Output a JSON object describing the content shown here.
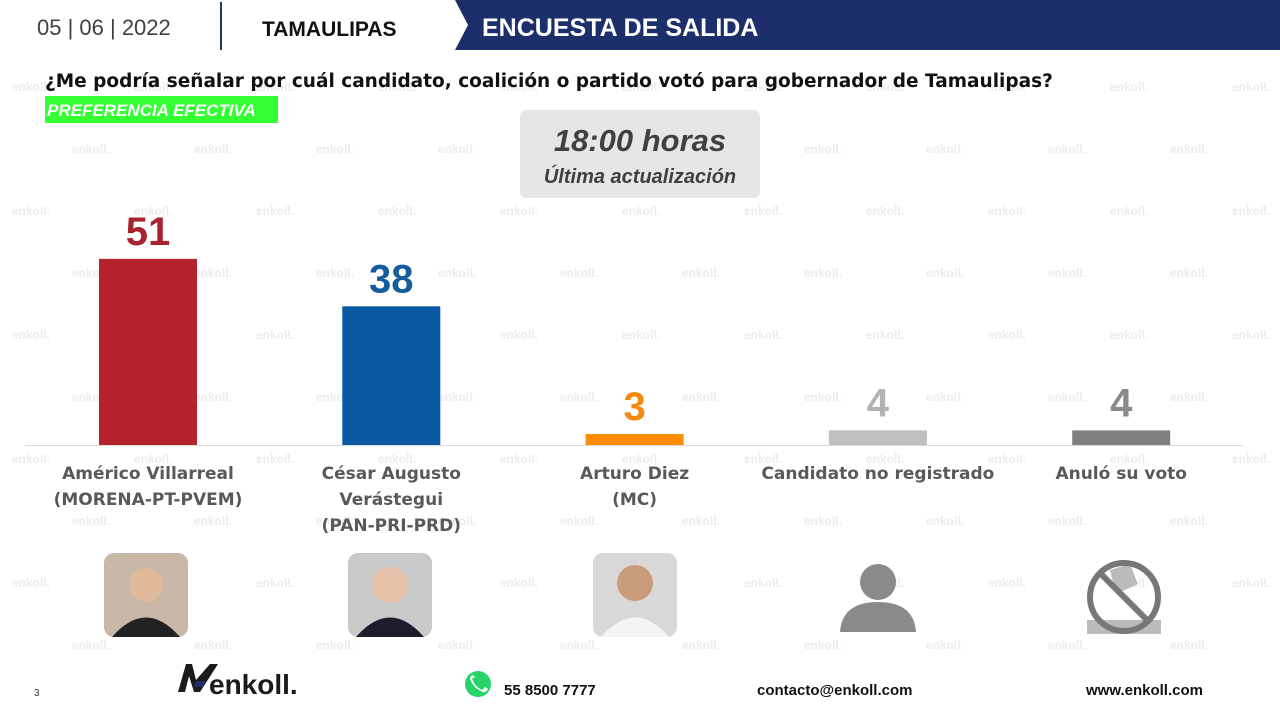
{
  "header": {
    "date": "05 | 06 | 2022",
    "state": "TAMAULIPAS",
    "banner": "ENCUESTA DE SALIDA"
  },
  "question": "¿Me podría señalar por cuál candidato, coalición o partido votó para gobernador de Tamaulipas?",
  "tag": "PREFERENCIA EFECTIVA",
  "update": {
    "time": "18:00 horas",
    "label": "Última actualización"
  },
  "watermark": "enkoll.",
  "chart_data": {
    "type": "bar",
    "categories": [
      "Américo Villarreal\n(MORENA-PT-PVEM)",
      "César Augusto\nVerástegui\n(PAN-PRI-PRD)",
      "Arturo Diez\n(MC)",
      "Candidato no registrado",
      "Anuló su voto"
    ],
    "values": [
      51,
      38,
      3,
      4,
      4
    ],
    "colors": [
      "#b3222d",
      "#0b59a1",
      "#ff8c00",
      "#bfbfbf",
      "#7f7f7f"
    ],
    "label_colors": [
      "#a8222f",
      "#155c9c",
      "#f5890f",
      "#b3b3b3",
      "#8a8a8a"
    ]
  },
  "footer": {
    "page": "3",
    "logo": "enkoll.",
    "phone": "55 8500 7777",
    "email": "contacto@enkoll.com",
    "web": "www.enkoll.com"
  }
}
